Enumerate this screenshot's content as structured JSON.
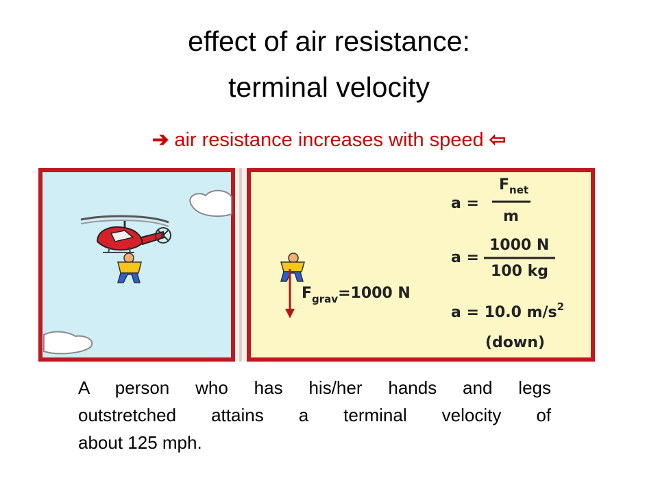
{
  "slide": {
    "title_line1": "effect of air resistance:",
    "title_line2": "terminal velocity",
    "subtitle": {
      "arrow_left": "➔",
      "text": "air resistance increases with speed",
      "arrow_right": "⇦"
    },
    "caption_lines": [
      "A person who has his/her hands and legs",
      "outstretched attains a terminal velocity of",
      "about 125 mph."
    ]
  },
  "diagram": {
    "force_label": "F",
    "force_subscript": "grav",
    "force_value": "=1000 N",
    "eq1_lhs": "a =",
    "eq1_num": "F",
    "eq1_num_sub": "net",
    "eq1_den": "m",
    "eq2_lhs": "a =",
    "eq2_num": "1000 N",
    "eq2_den": "100 kg",
    "eq3": "a = 10.0 m/s",
    "eq3_exp": "2",
    "eq3_dir": "(down)"
  },
  "colors": {
    "frame": "#c01820",
    "sky": "#cfeef6",
    "panel": "#fdf7c6",
    "accent_text": "#cc0000"
  }
}
